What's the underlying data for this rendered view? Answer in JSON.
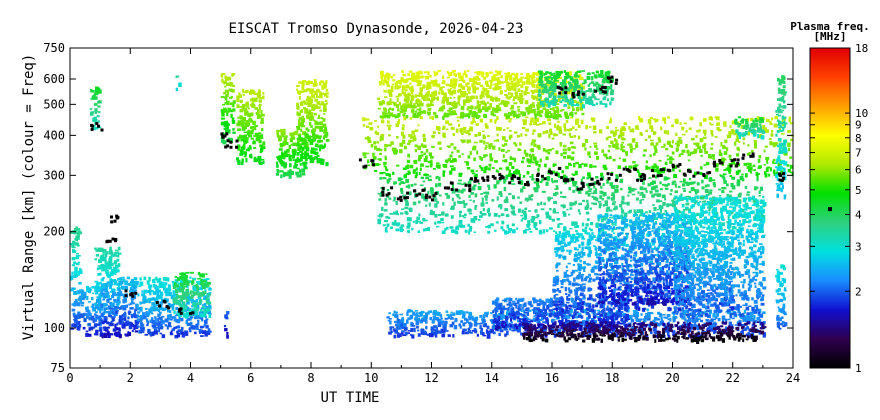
{
  "chart_data": {
    "type": "scatter",
    "title": "EISCAT Tromso Dynasonde, 2026-04-23",
    "xlabel": "UT TIME",
    "ylabel": "Virtual Range [km] (colour = Freq)",
    "xlim": [
      0,
      24
    ],
    "ylim": [
      75,
      750
    ],
    "yscale": "log",
    "x_ticks": [
      0,
      2,
      4,
      6,
      8,
      10,
      12,
      14,
      16,
      18,
      20,
      22,
      24
    ],
    "y_ticks": [
      75,
      100,
      200,
      300,
      400,
      500,
      600,
      750
    ],
    "grid": false,
    "colorbar": {
      "title": "Plasma freq.",
      "unit": "[MHz]",
      "scale": "log",
      "range": [
        1,
        18
      ],
      "ticks": [
        1,
        2,
        3,
        4,
        5,
        6,
        7,
        8,
        9,
        10,
        18
      ],
      "colors": [
        "#000000",
        "#300050",
        "#1010d0",
        "#1a8cff",
        "#00e0e0",
        "#30d080",
        "#00e000",
        "#b0e800",
        "#ffff00",
        "#ffa000",
        "#ff4000",
        "#e00000"
      ],
      "marker_value": 4.2
    },
    "traces": [
      {
        "kind": "echo-clusters",
        "clusters": [
          {
            "x": [
              0.0,
              0.45
            ],
            "y": [
              100,
              140
            ],
            "f": [
              1.8,
              2.6
            ]
          },
          {
            "x": [
              0.0,
              0.3
            ],
            "y": [
              140,
              210
            ],
            "f": [
              2.7,
              3.6
            ]
          },
          {
            "x": [
              0.5,
              1.0
            ],
            "y": [
              95,
              140
            ],
            "f": [
              1.7,
              2.8
            ]
          },
          {
            "x": [
              0.65,
              0.95
            ],
            "y": [
              420,
              570
            ],
            "f": [
              3.0,
              4.5
            ]
          },
          {
            "x": [
              0.8,
              1.6
            ],
            "y": [
              110,
              180
            ],
            "f": [
              2.2,
              3.4
            ]
          },
          {
            "x": [
              1.0,
              2.2
            ],
            "y": [
              95,
              145
            ],
            "f": [
              1.6,
              2.6
            ]
          },
          {
            "x": [
              2.2,
              4.6
            ],
            "y": [
              95,
              145
            ],
            "f": [
              1.8,
              3.0
            ]
          },
          {
            "x": [
              3.4,
              4.6
            ],
            "y": [
              110,
              150
            ],
            "f": [
              3.0,
              4.5
            ]
          },
          {
            "x": [
              3.5,
              3.6
            ],
            "y": [
              560,
              630
            ],
            "f": [
              2.8,
              3.5
            ]
          },
          {
            "x": [
              5.0,
              5.4
            ],
            "y": [
              380,
              630
            ],
            "f": [
              4.0,
              6.5
            ]
          },
          {
            "x": [
              5.1,
              5.2
            ],
            "y": [
              95,
              115
            ],
            "f": [
              1.6,
              2.0
            ]
          },
          {
            "x": [
              5.5,
              6.4
            ],
            "y": [
              330,
              560
            ],
            "f": [
              4.5,
              6.5
            ]
          },
          {
            "x": [
              6.8,
              7.8
            ],
            "y": [
              300,
              420
            ],
            "f": [
              4.0,
              6.0
            ]
          },
          {
            "x": [
              7.5,
              8.5
            ],
            "y": [
              330,
              600
            ],
            "f": [
              4.5,
              7.0
            ]
          },
          {
            "x": [
              9.7,
              24.0
            ],
            "y": [
              300,
              460
            ],
            "f": [
              4.8,
              6.8
            ]
          },
          {
            "x": [
              10.2,
              17.0
            ],
            "y": [
              460,
              640
            ],
            "f": [
              5.5,
              7.5
            ]
          },
          {
            "x": [
              15.5,
              18.0
            ],
            "y": [
              500,
              640
            ],
            "f": [
              3.2,
              4.5
            ]
          },
          {
            "x": [
              10.2,
              23.0
            ],
            "y": [
              200,
              300
            ],
            "f": [
              3.0,
              4.2
            ]
          },
          {
            "x": [
              10.5,
              23.0
            ],
            "y": [
              95,
              115
            ],
            "f": [
              1.8,
              2.4
            ]
          },
          {
            "x": [
              14.0,
              18.5
            ],
            "y": [
              100,
              125
            ],
            "f": [
              1.6,
              2.2
            ]
          },
          {
            "x": [
              15.0,
              23.0
            ],
            "y": [
              92,
              105
            ],
            "f": [
              1.0,
              1.5
            ]
          },
          {
            "x": [
              16.0,
              22.0
            ],
            "y": [
              115,
              200
            ],
            "f": [
              1.8,
              2.8
            ]
          },
          {
            "x": [
              17.5,
              20.5
            ],
            "y": [
              120,
              230
            ],
            "f": [
              1.6,
              2.6
            ]
          },
          {
            "x": [
              20.0,
              23.0
            ],
            "y": [
              110,
              260
            ],
            "f": [
              2.0,
              3.0
            ]
          },
          {
            "x": [
              22.0,
              23.0
            ],
            "y": [
              400,
              460
            ],
            "f": [
              3.0,
              4.5
            ]
          },
          {
            "x": [
              23.4,
              23.7
            ],
            "y": [
              260,
              620
            ],
            "f": [
              2.5,
              4.0
            ]
          },
          {
            "x": [
              23.4,
              23.7
            ],
            "y": [
              100,
              160
            ],
            "f": [
              2.0,
              3.0
            ]
          }
        ]
      },
      {
        "kind": "trace-markers",
        "color": "#000000",
        "points": [
          [
            0.8,
            430
          ],
          [
            1.4,
            190
          ],
          [
            1.5,
            220
          ],
          [
            2.0,
            130
          ],
          [
            3.0,
            120
          ],
          [
            3.8,
            115
          ],
          [
            5.2,
            400
          ],
          [
            5.3,
            380
          ],
          [
            10.5,
            270
          ],
          [
            11.0,
            260
          ],
          [
            11.5,
            265
          ],
          [
            12.0,
            260
          ],
          [
            12.5,
            280
          ],
          [
            13.0,
            275
          ],
          [
            13.5,
            290
          ],
          [
            14.0,
            300
          ],
          [
            14.5,
            295
          ],
          [
            15.0,
            290
          ],
          [
            15.5,
            300
          ],
          [
            16.0,
            310
          ],
          [
            16.5,
            290
          ],
          [
            17.0,
            280
          ],
          [
            17.5,
            290
          ],
          [
            18.0,
            300
          ],
          [
            18.5,
            310
          ],
          [
            19.0,
            300
          ],
          [
            19.5,
            310
          ],
          [
            20.0,
            320
          ],
          [
            20.5,
            310
          ],
          [
            21.0,
            310
          ],
          [
            21.5,
            330
          ],
          [
            22.0,
            330
          ],
          [
            22.5,
            350
          ],
          [
            16.2,
            560
          ],
          [
            16.8,
            540
          ],
          [
            17.5,
            560
          ],
          [
            18.0,
            600
          ],
          [
            9.8,
            330
          ],
          [
            23.6,
            300
          ]
        ]
      }
    ]
  }
}
